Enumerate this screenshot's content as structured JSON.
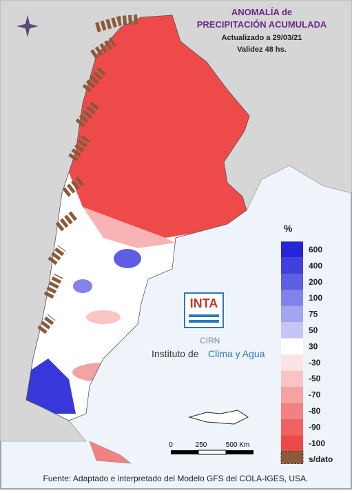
{
  "header": {
    "title_line1": "ANOMALÍA de",
    "title_line2": "PRECIPITACIÓN ACUMULADA",
    "updated": "Actualizado a 29/03/21",
    "validity": "Validez 48 hs."
  },
  "legend": {
    "unit": "%",
    "items": [
      {
        "label": "600",
        "color": "#2424d8"
      },
      {
        "label": "400",
        "color": "#4040dc"
      },
      {
        "label": "200",
        "color": "#5e5ee2"
      },
      {
        "label": "100",
        "color": "#8282ea"
      },
      {
        "label": "75",
        "color": "#a4a4f0"
      },
      {
        "label": "50",
        "color": "#c6c6f6"
      },
      {
        "label": "30",
        "color": "#ffffff"
      },
      {
        "label": "-30",
        "color": "#fde4e4"
      },
      {
        "label": "-50",
        "color": "#f9c4c4"
      },
      {
        "label": "-70",
        "color": "#f5a2a2"
      },
      {
        "label": "-80",
        "color": "#f28282"
      },
      {
        "label": "-90",
        "color": "#ef6262"
      },
      {
        "label": "-100",
        "color": "#ee4848"
      },
      {
        "label": "s/dato",
        "color": "#8b5a3c"
      }
    ]
  },
  "logo": {
    "acronym": "INTA",
    "center": "CIRN",
    "institute_prefix": "Instituto de",
    "institute_name": "Clima y Agua"
  },
  "scale_bar": {
    "labels": [
      "0",
      "250",
      "500 Km"
    ]
  },
  "footer": "Fuente: Adaptado e interpretado del Modelo GFS del COLA-IGES, USA."
}
